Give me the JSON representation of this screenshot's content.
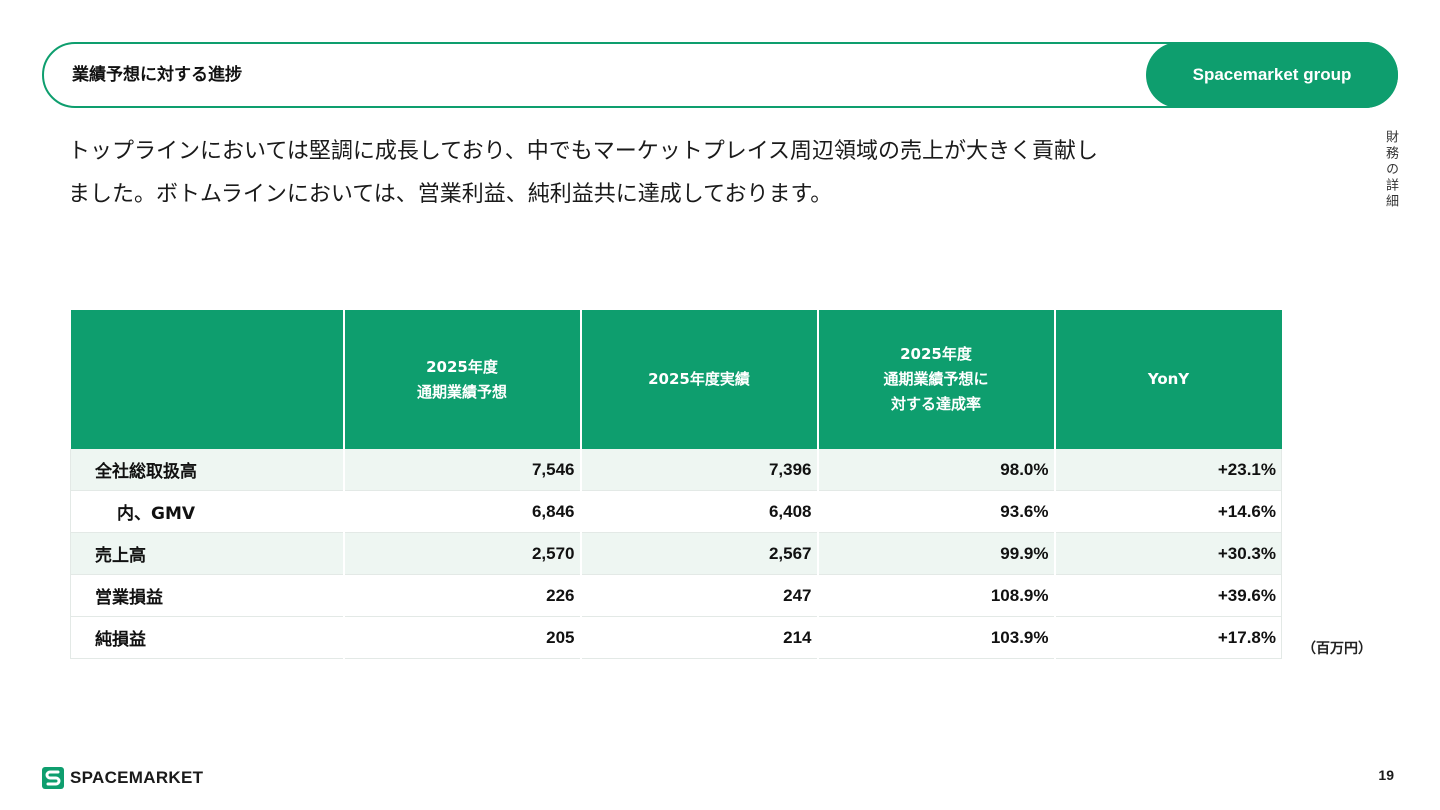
{
  "header": {
    "title": "業績予想に対する進捗",
    "brand": "Spacemarket group"
  },
  "side_label": "財務の詳細",
  "intro": {
    "line1": "トップラインにおいては堅調に成長しており、中でもマーケットプレイス周辺領域の売上が大きく貢献し",
    "line2": "ました。ボトムラインにおいては、営業利益、純利益共に達成しております。"
  },
  "table": {
    "columns": [
      "",
      "2025年度\n通期業績予想",
      "2025年度実績",
      "2025年度\n通期業績予想に\n対する達成率",
      "YonY"
    ],
    "rows": [
      {
        "label": "全社総取扱高",
        "forecast": "7,546",
        "actual": "7,396",
        "achievement": "98.0%",
        "yoy": "+23.1%"
      },
      {
        "label": "内、GMV",
        "forecast": "6,846",
        "actual": "6,408",
        "achievement": "93.6%",
        "yoy": "+14.6%"
      },
      {
        "label": "売上高",
        "forecast": "2,570",
        "actual": "2,567",
        "achievement": "99.9%",
        "yoy": "+30.3%"
      },
      {
        "label": "営業損益",
        "forecast": "226",
        "actual": "247",
        "achievement": "108.9%",
        "yoy": "+39.6%"
      },
      {
        "label": "純損益",
        "forecast": "205",
        "actual": "214",
        "achievement": "103.9%",
        "yoy": "+17.8%"
      }
    ],
    "unit": "（百万円）"
  },
  "footer": {
    "logo_text": "SPACEMARKET",
    "page_number": "19"
  },
  "colors": {
    "accent": "#0e9e6e",
    "row_shade": "#eef6f2"
  }
}
